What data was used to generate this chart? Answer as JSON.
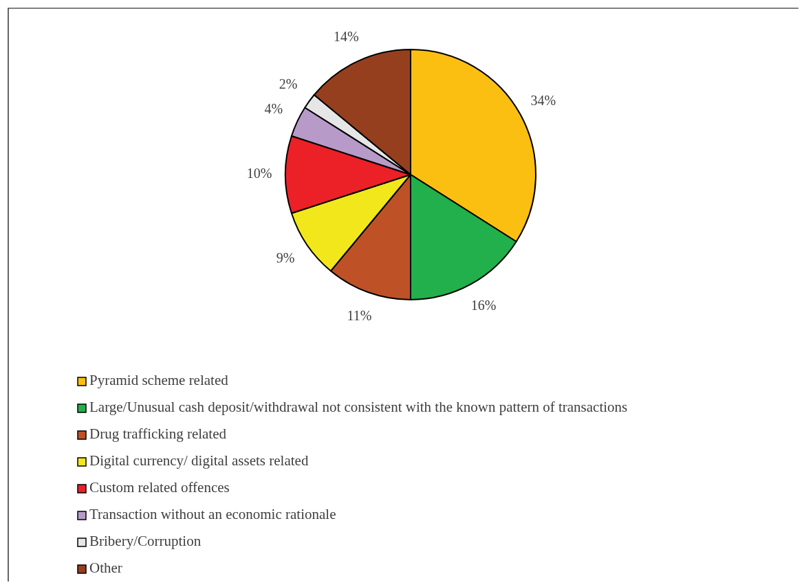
{
  "chart_data": {
    "type": "pie",
    "categories": [
      "Pyramid scheme related",
      "Large/Unusual cash deposit/withdrawal not consistent with the known pattern of transactions",
      "Drug trafficking related",
      "Digital currency/ digital assets related",
      "Custom related offences",
      "Transaction without an economic rationale",
      "Bribery/Corruption",
      "Other"
    ],
    "values": [
      34,
      16,
      11,
      9,
      10,
      4,
      2,
      14
    ],
    "colors": [
      "#fbbf12",
      "#21b04b",
      "#bf5127",
      "#f1e71b",
      "#ec2027",
      "#b89ac9",
      "#e6e6e6",
      "#963f1f"
    ],
    "value_labels": [
      "34%",
      "16%",
      "11%",
      "9%",
      "10%",
      "4%",
      "2%",
      "14%"
    ],
    "legend": "bottom"
  }
}
